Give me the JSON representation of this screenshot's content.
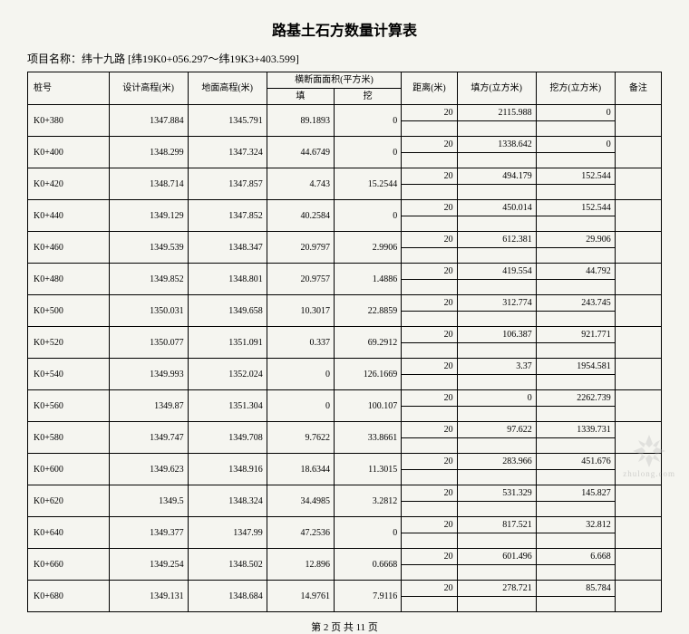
{
  "title": "路基土石方数量计算表",
  "project_name": "项目名称：纬十九路 [纬19K0+056.297～纬19K3+403.599]",
  "headers": {
    "station": "桩号",
    "design_elev": "设计高程(米)",
    "ground_elev": "地面高程(米)",
    "cross_section": "横断面面积(平方米)",
    "fill": "填",
    "cut": "挖",
    "distance": "距离(米)",
    "fill_vol": "填方(立方米)",
    "cut_vol": "挖方(立方米)",
    "remark": "备注"
  },
  "rows": [
    {
      "station": "",
      "design": "",
      "ground": "",
      "fill": "",
      "cut": "",
      "dist": "20",
      "fillv": "2115.988",
      "cutv": "0",
      "note": ""
    },
    {
      "station": "K0+380",
      "design": "1347.884",
      "ground": "1345.791",
      "fill": "89.1893",
      "cut": "0",
      "dist": "",
      "fillv": "",
      "cutv": "",
      "note": ""
    },
    {
      "station": "",
      "design": "",
      "ground": "",
      "fill": "",
      "cut": "",
      "dist": "20",
      "fillv": "1338.642",
      "cutv": "0",
      "note": ""
    },
    {
      "station": "K0+400",
      "design": "1348.299",
      "ground": "1347.324",
      "fill": "44.6749",
      "cut": "0",
      "dist": "",
      "fillv": "",
      "cutv": "",
      "note": ""
    },
    {
      "station": "",
      "design": "",
      "ground": "",
      "fill": "",
      "cut": "",
      "dist": "20",
      "fillv": "494.179",
      "cutv": "152.544",
      "note": ""
    },
    {
      "station": "K0+420",
      "design": "1348.714",
      "ground": "1347.857",
      "fill": "4.743",
      "cut": "15.2544",
      "dist": "",
      "fillv": "",
      "cutv": "",
      "note": ""
    },
    {
      "station": "",
      "design": "",
      "ground": "",
      "fill": "",
      "cut": "",
      "dist": "20",
      "fillv": "450.014",
      "cutv": "152.544",
      "note": ""
    },
    {
      "station": "K0+440",
      "design": "1349.129",
      "ground": "1347.852",
      "fill": "40.2584",
      "cut": "0",
      "dist": "",
      "fillv": "",
      "cutv": "",
      "note": ""
    },
    {
      "station": "",
      "design": "",
      "ground": "",
      "fill": "",
      "cut": "",
      "dist": "20",
      "fillv": "612.381",
      "cutv": "29.906",
      "note": ""
    },
    {
      "station": "K0+460",
      "design": "1349.539",
      "ground": "1348.347",
      "fill": "20.9797",
      "cut": "2.9906",
      "dist": "",
      "fillv": "",
      "cutv": "",
      "note": ""
    },
    {
      "station": "",
      "design": "",
      "ground": "",
      "fill": "",
      "cut": "",
      "dist": "20",
      "fillv": "419.554",
      "cutv": "44.792",
      "note": ""
    },
    {
      "station": "K0+480",
      "design": "1349.852",
      "ground": "1348.801",
      "fill": "20.9757",
      "cut": "1.4886",
      "dist": "",
      "fillv": "",
      "cutv": "",
      "note": ""
    },
    {
      "station": "",
      "design": "",
      "ground": "",
      "fill": "",
      "cut": "",
      "dist": "20",
      "fillv": "312.774",
      "cutv": "243.745",
      "note": ""
    },
    {
      "station": "K0+500",
      "design": "1350.031",
      "ground": "1349.658",
      "fill": "10.3017",
      "cut": "22.8859",
      "dist": "",
      "fillv": "",
      "cutv": "",
      "note": ""
    },
    {
      "station": "",
      "design": "",
      "ground": "",
      "fill": "",
      "cut": "",
      "dist": "20",
      "fillv": "106.387",
      "cutv": "921.771",
      "note": ""
    },
    {
      "station": "K0+520",
      "design": "1350.077",
      "ground": "1351.091",
      "fill": "0.337",
      "cut": "69.2912",
      "dist": "",
      "fillv": "",
      "cutv": "",
      "note": ""
    },
    {
      "station": "",
      "design": "",
      "ground": "",
      "fill": "",
      "cut": "",
      "dist": "20",
      "fillv": "3.37",
      "cutv": "1954.581",
      "note": ""
    },
    {
      "station": "K0+540",
      "design": "1349.993",
      "ground": "1352.024",
      "fill": "0",
      "cut": "126.1669",
      "dist": "",
      "fillv": "",
      "cutv": "",
      "note": ""
    },
    {
      "station": "",
      "design": "",
      "ground": "",
      "fill": "",
      "cut": "",
      "dist": "20",
      "fillv": "0",
      "cutv": "2262.739",
      "note": ""
    },
    {
      "station": "K0+560",
      "design": "1349.87",
      "ground": "1351.304",
      "fill": "0",
      "cut": "100.107",
      "dist": "",
      "fillv": "",
      "cutv": "",
      "note": ""
    },
    {
      "station": "",
      "design": "",
      "ground": "",
      "fill": "",
      "cut": "",
      "dist": "20",
      "fillv": "97.622",
      "cutv": "1339.731",
      "note": ""
    },
    {
      "station": "K0+580",
      "design": "1349.747",
      "ground": "1349.708",
      "fill": "9.7622",
      "cut": "33.8661",
      "dist": "",
      "fillv": "",
      "cutv": "",
      "note": ""
    },
    {
      "station": "",
      "design": "",
      "ground": "",
      "fill": "",
      "cut": "",
      "dist": "20",
      "fillv": "283.966",
      "cutv": "451.676",
      "note": ""
    },
    {
      "station": "K0+600",
      "design": "1349.623",
      "ground": "1348.916",
      "fill": "18.6344",
      "cut": "11.3015",
      "dist": "",
      "fillv": "",
      "cutv": "",
      "note": ""
    },
    {
      "station": "",
      "design": "",
      "ground": "",
      "fill": "",
      "cut": "",
      "dist": "20",
      "fillv": "531.329",
      "cutv": "145.827",
      "note": ""
    },
    {
      "station": "K0+620",
      "design": "1349.5",
      "ground": "1348.324",
      "fill": "34.4985",
      "cut": "3.2812",
      "dist": "",
      "fillv": "",
      "cutv": "",
      "note": ""
    },
    {
      "station": "",
      "design": "",
      "ground": "",
      "fill": "",
      "cut": "",
      "dist": "20",
      "fillv": "817.521",
      "cutv": "32.812",
      "note": ""
    },
    {
      "station": "K0+640",
      "design": "1349.377",
      "ground": "1347.99",
      "fill": "47.2536",
      "cut": "0",
      "dist": "",
      "fillv": "",
      "cutv": "",
      "note": ""
    },
    {
      "station": "",
      "design": "",
      "ground": "",
      "fill": "",
      "cut": "",
      "dist": "20",
      "fillv": "601.496",
      "cutv": "6.668",
      "note": ""
    },
    {
      "station": "K0+660",
      "design": "1349.254",
      "ground": "1348.502",
      "fill": "12.896",
      "cut": "0.6668",
      "dist": "",
      "fillv": "",
      "cutv": "",
      "note": ""
    },
    {
      "station": "",
      "design": "",
      "ground": "",
      "fill": "",
      "cut": "",
      "dist": "20",
      "fillv": "278.721",
      "cutv": "85.784",
      "note": ""
    },
    {
      "station": "K0+680",
      "design": "1349.131",
      "ground": "1348.684",
      "fill": "14.9761",
      "cut": "7.9116",
      "dist": "",
      "fillv": "",
      "cutv": "",
      "note": ""
    }
  ],
  "footer": "第 2 页 共 11 页",
  "watermark_text": "zhulong.com"
}
